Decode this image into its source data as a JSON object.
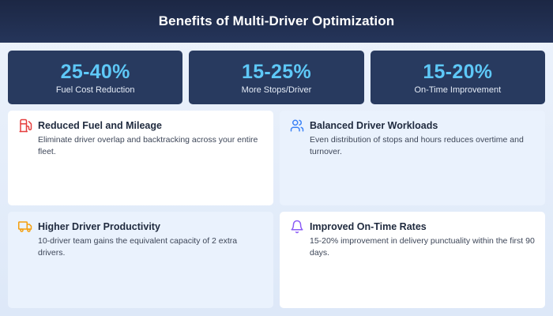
{
  "header": {
    "title": "Benefits of Multi-Driver Optimization"
  },
  "stats": [
    {
      "value": "25-40%",
      "label": "Fuel Cost Reduction"
    },
    {
      "value": "15-25%",
      "label": "More Stops/Driver"
    },
    {
      "value": "15-20%",
      "label": "On-Time Improvement"
    }
  ],
  "cards": [
    {
      "icon": "fuel-pump-icon",
      "icon_color": "#e53e3e",
      "title": "Reduced Fuel and Mileage",
      "text": "Eliminate driver overlap and backtracking across your entire fleet."
    },
    {
      "icon": "users-icon",
      "icon_color": "#3b82f6",
      "title": "Balanced Driver Workloads",
      "text": "Even distribution of stops and hours reduces overtime and turnover."
    },
    {
      "icon": "truck-icon",
      "icon_color": "#f59e0b",
      "title": "Higher Driver Productivity",
      "text": "10-driver team gains the equivalent capacity of 2 extra drivers."
    },
    {
      "icon": "bell-icon",
      "icon_color": "#8b5cf6",
      "title": "Improved On-Time Rates",
      "text": "15-20% improvement in delivery punctuality within the first 90 days."
    }
  ],
  "colors": {
    "header_bg": "#1c2744",
    "stat_bg": "#283a5f",
    "stat_value": "#5ec8f7"
  }
}
